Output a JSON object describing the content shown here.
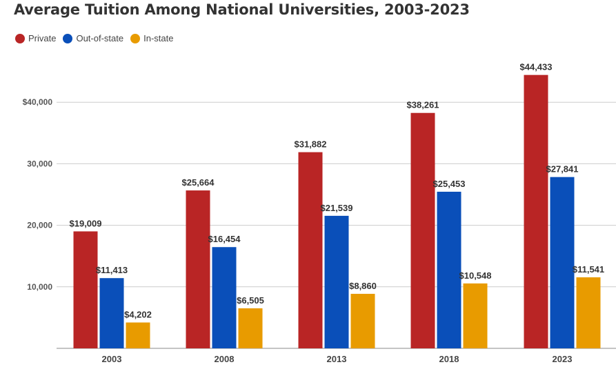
{
  "chart_data": {
    "type": "bar",
    "title": "Average Tuition Among National Universities, 2003-2023",
    "xlabel": "",
    "ylabel": "",
    "categories": [
      "2003",
      "2008",
      "2013",
      "2018",
      "2023"
    ],
    "series": [
      {
        "name": "Private",
        "color": "#b92525",
        "values": [
          19009,
          25664,
          31882,
          38261,
          44433
        ],
        "labels": [
          "$19,009",
          "$25,664",
          "$31,882",
          "$38,261",
          "$44,433"
        ]
      },
      {
        "name": "Out-of-state",
        "color": "#0a4fb9",
        "values": [
          11413,
          16454,
          21539,
          25453,
          27841
        ],
        "labels": [
          "$11,413",
          "$16,454",
          "$21,539",
          "$25,453",
          "$27,841"
        ]
      },
      {
        "name": "In-state",
        "color": "#e89b00",
        "values": [
          4202,
          6505,
          8860,
          10548,
          11541
        ],
        "labels": [
          "$4,202",
          "$6,505",
          "$8,860",
          "$10,548",
          "$11,541"
        ]
      }
    ],
    "yticks": [
      10000,
      20000,
      30000,
      40000
    ],
    "ytick_labels": [
      "10,000",
      "20,000",
      "30,000",
      "$40,000"
    ],
    "ylim": [
      0,
      50000
    ],
    "grid": true,
    "legend_position": "top-left"
  }
}
